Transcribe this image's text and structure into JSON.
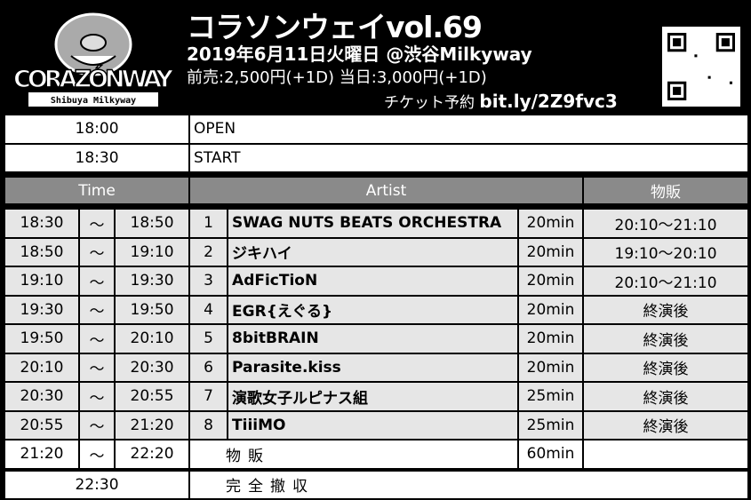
{
  "header": {
    "logo_text": "CORAZÓNWAY",
    "logo_sub": "Shibuya Milkyway",
    "title": "コラソンウェイvol.69",
    "date_venue": "2019年6月11日火曜日 @渋谷Milkyway",
    "price": "前売:2,500円(+1D)  当日:3,000円(+1D)",
    "ticket_label": "チケット予約",
    "ticket_url": "bit.ly/2Z9fvc3"
  },
  "pre": [
    {
      "time": "18:00",
      "label": "OPEN"
    },
    {
      "time": "18:30",
      "label": "START"
    }
  ],
  "columns": {
    "time": "Time",
    "artist": "Artist",
    "merch": "物販"
  },
  "acts": [
    {
      "start": "18:30",
      "sep": "〜",
      "end": "18:50",
      "no": "1",
      "artist": "SWAG NUTS BEATS ORCHESTRA",
      "dur": "20min",
      "merch": "20:10〜21:10"
    },
    {
      "start": "18:50",
      "sep": "〜",
      "end": "19:10",
      "no": "2",
      "artist": "ジキハイ",
      "dur": "20min",
      "merch": "19:10〜20:10"
    },
    {
      "start": "19:10",
      "sep": "〜",
      "end": "19:30",
      "no": "3",
      "artist": "AdFicTioN",
      "dur": "20min",
      "merch": "20:10〜21:10"
    },
    {
      "start": "19:30",
      "sep": "〜",
      "end": "19:50",
      "no": "4",
      "artist": "EGR{えぐる}",
      "dur": "20min",
      "merch": "終演後"
    },
    {
      "start": "19:50",
      "sep": "〜",
      "end": "20:10",
      "no": "5",
      "artist": "8bitBRAIN",
      "dur": "20min",
      "merch": "終演後"
    },
    {
      "start": "20:10",
      "sep": "〜",
      "end": "20:30",
      "no": "6",
      "artist": "Parasite.kiss",
      "dur": "20min",
      "merch": "終演後"
    },
    {
      "start": "20:30",
      "sep": "〜",
      "end": "20:55",
      "no": "7",
      "artist": "演歌女子ルピナス組",
      "dur": "25min",
      "merch": "終演後"
    },
    {
      "start": "20:55",
      "sep": "〜",
      "end": "21:20",
      "no": "8",
      "artist": "TiiiMO",
      "dur": "25min",
      "merch": "終演後"
    }
  ],
  "merch_row": {
    "start": "21:20",
    "sep": "〜",
    "end": "22:20",
    "label": "物販",
    "dur": "60min"
  },
  "close_row": {
    "time": "22:30",
    "label": "完全撤収"
  }
}
